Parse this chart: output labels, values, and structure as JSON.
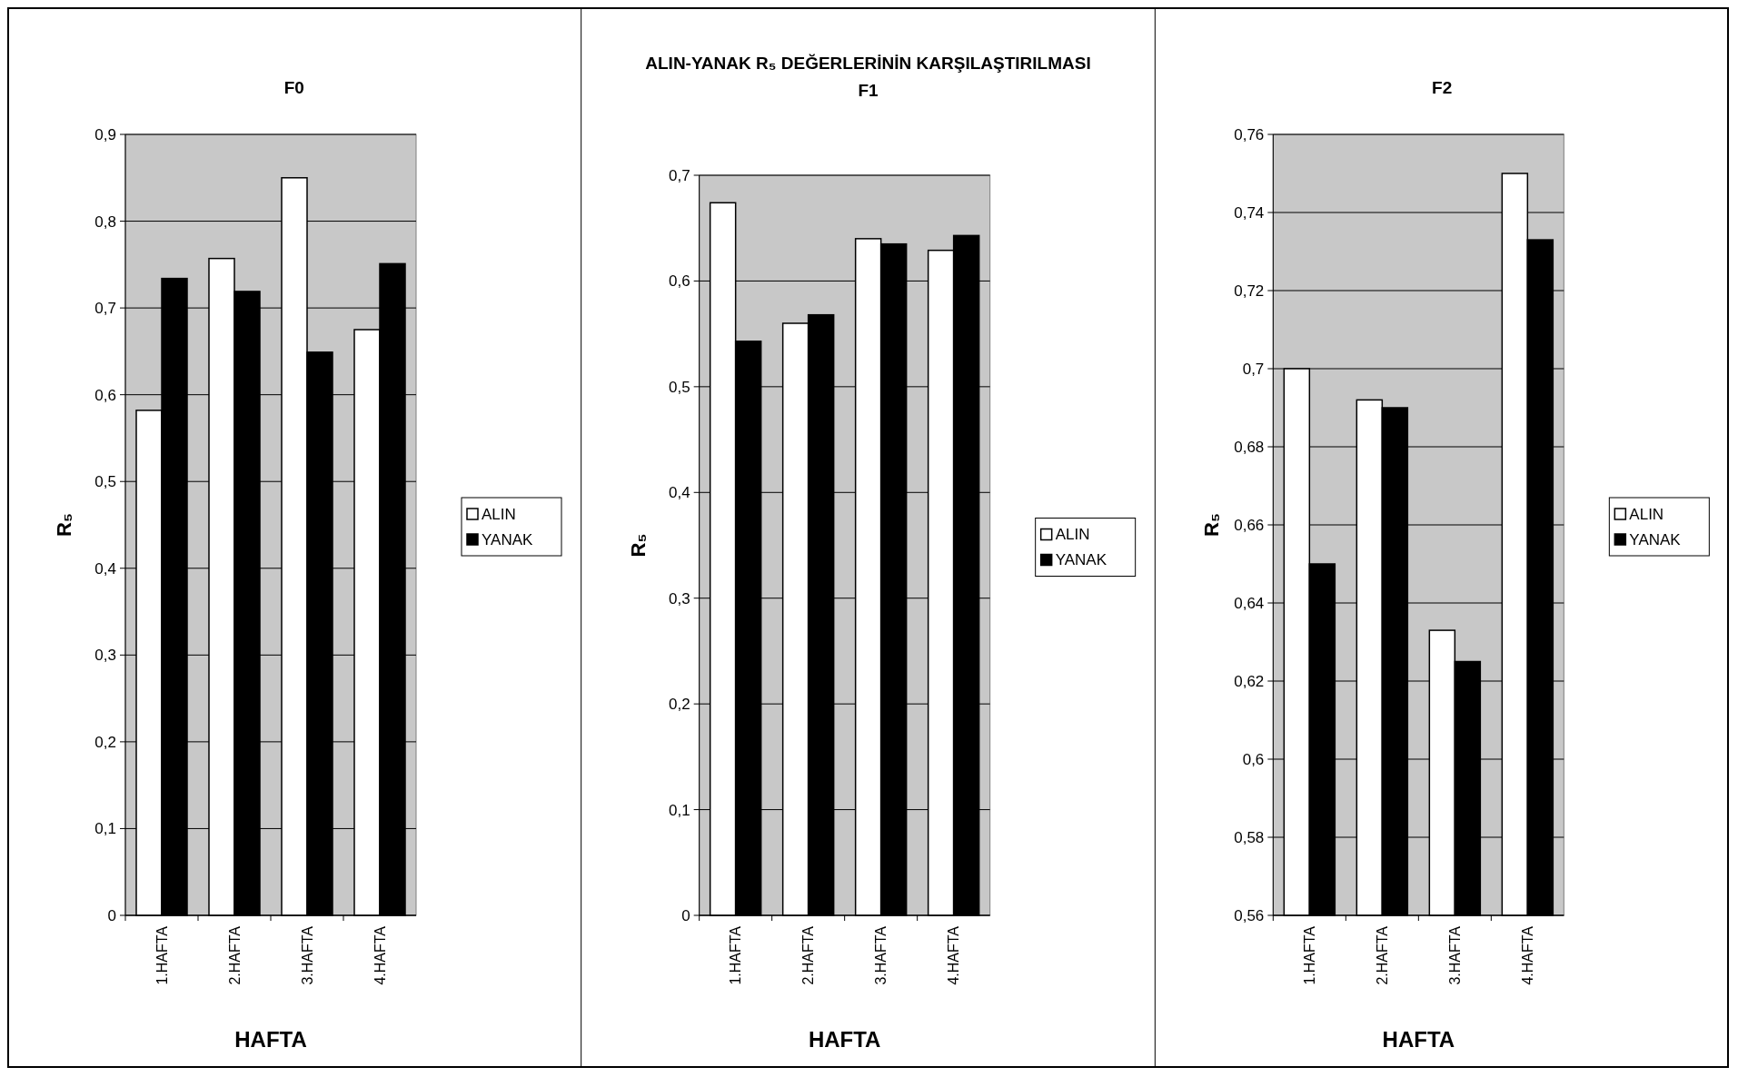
{
  "chart_data": [
    {
      "type": "bar",
      "title": "F0",
      "xlabel": "HAFTA",
      "ylabel": "R₅",
      "categories": [
        "1.HAFTA",
        "2.HAFTA",
        "3.HAFTA",
        "4.HAFTA"
      ],
      "series": [
        {
          "name": "ALIN",
          "color": "#ffffff",
          "values": [
            0.582,
            0.757,
            0.85,
            0.675
          ]
        },
        {
          "name": "YANAK",
          "color": "#000000",
          "values": [
            0.734,
            0.719,
            0.649,
            0.751
          ]
        }
      ],
      "ylim": [
        0,
        0.9
      ],
      "yticks": [
        0,
        {
          "value": 0.1,
          "label": "0,1"
        },
        {
          "value": 0.2,
          "label": "0,2"
        },
        {
          "value": 0.3,
          "label": "0,3"
        },
        {
          "value": 0.4,
          "label": "0,4"
        },
        {
          "value": 0.5,
          "label": "0,5"
        },
        {
          "value": 0.6,
          "label": "0,6"
        },
        {
          "value": 0.7,
          "label": "0,7"
        },
        {
          "value": 0.8,
          "label": "0,8"
        },
        {
          "value": 0.9,
          "label": "0,9"
        }
      ],
      "grid": "y",
      "legend": "right"
    },
    {
      "type": "bar",
      "title": "ALIN-YANAK R₅ DEĞERLERİNİN KARŞILAŞTIRILMASI",
      "subtitle": "F1",
      "xlabel": "HAFTA",
      "ylabel": "R₅",
      "categories": [
        "1.HAFTA",
        "2.HAFTA",
        "3.HAFTA",
        "4.HAFTA"
      ],
      "series": [
        {
          "name": "ALIN",
          "color": "#ffffff",
          "values": [
            0.674,
            0.56,
            0.64,
            0.629
          ]
        },
        {
          "name": "YANAK",
          "color": "#000000",
          "values": [
            0.543,
            0.568,
            0.635,
            0.643
          ]
        }
      ],
      "ylim": [
        0,
        0.7
      ],
      "yticks": [
        0,
        {
          "value": 0.1,
          "label": "0,1"
        },
        {
          "value": 0.2,
          "label": "0,2"
        },
        {
          "value": 0.3,
          "label": "0,3"
        },
        {
          "value": 0.4,
          "label": "0,4"
        },
        {
          "value": 0.5,
          "label": "0,5"
        },
        {
          "value": 0.6,
          "label": "0,6"
        },
        {
          "value": 0.7,
          "label": "0,7"
        }
      ],
      "grid": "y",
      "legend": "right"
    },
    {
      "type": "bar",
      "title": "F2",
      "xlabel": "HAFTA",
      "ylabel": "R₅",
      "categories": [
        "1.HAFTA",
        "2.HAFTA",
        "3.HAFTA",
        "4.HAFTA"
      ],
      "series": [
        {
          "name": "ALIN",
          "color": "#ffffff",
          "values": [
            0.7,
            0.692,
            0.633,
            0.75
          ]
        },
        {
          "name": "YANAK",
          "color": "#000000",
          "values": [
            0.65,
            0.69,
            0.625,
            0.733
          ]
        }
      ],
      "ylim": [
        0.56,
        0.76
      ],
      "yticks": [
        {
          "value": 0.56,
          "label": "0,56"
        },
        {
          "value": 0.58,
          "label": "0,58"
        },
        {
          "value": 0.6,
          "label": "0,6"
        },
        {
          "value": 0.62,
          "label": "0,62"
        },
        {
          "value": 0.64,
          "label": "0,64"
        },
        {
          "value": 0.66,
          "label": "0,66"
        },
        {
          "value": 0.68,
          "label": "0,68"
        },
        {
          "value": 0.7,
          "label": "0,7"
        },
        {
          "value": 0.72,
          "label": "0,72"
        },
        {
          "value": 0.74,
          "label": "0,74"
        },
        {
          "value": 0.76,
          "label": "0,76"
        }
      ],
      "grid": "y",
      "legend": "right"
    }
  ]
}
